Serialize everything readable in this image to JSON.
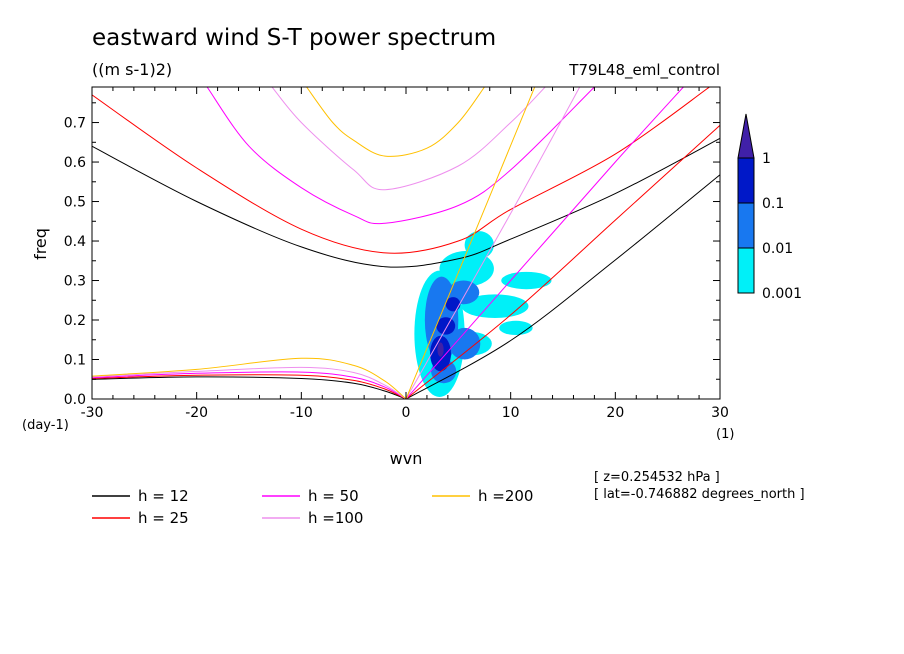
{
  "chart_data": {
    "type": "line",
    "title": "eastward wind S-T power spectrum",
    "subtitle": "((m s-1)2)",
    "experiment": "T79L48_eml_control",
    "xlabel": "wvn",
    "x_unit": "(1)",
    "ylabel": "freq",
    "y_unit": "(day-1)",
    "xlim": [
      -30,
      30
    ],
    "ylim": [
      0,
      0.79
    ],
    "x_ticks": [
      -30,
      -20,
      -10,
      0,
      10,
      20,
      30
    ],
    "x_tick_labels": [
      "-30",
      "-20",
      "-10",
      "0",
      "10",
      "20",
      "30"
    ],
    "y_ticks": [
      0,
      0.1,
      0.2,
      0.3,
      0.4,
      0.5,
      0.6,
      0.7
    ],
    "y_tick_labels": [
      "0.0",
      "0.1",
      "0.2",
      "0.3",
      "0.4",
      "0.5",
      "0.6",
      "0.7"
    ],
    "info_lines": [
      "[ z=0.254532 hPa ]",
      "[ lat=-0.746882 degrees_north ]"
    ],
    "series": [
      {
        "name": "h = 12",
        "color": "#000000",
        "kelvin": [
          [
            0,
            0
          ],
          [
            10,
            0.148
          ],
          [
            20,
            0.352
          ],
          [
            30,
            0.568
          ]
        ],
        "rossby": [
          [
            -30,
            0.05
          ],
          [
            -20,
            0.056
          ],
          [
            -10,
            0.052
          ],
          [
            -5,
            0.04
          ],
          [
            -2,
            0.02
          ],
          [
            0,
            0
          ]
        ],
        "inertia_gravity": [
          [
            -30,
            0.64
          ],
          [
            -20,
            0.5
          ],
          [
            -10,
            0.385
          ],
          [
            -2,
            0.335
          ],
          [
            5,
            0.355
          ],
          [
            10,
            0.405
          ],
          [
            20,
            0.52
          ],
          [
            30,
            0.66
          ]
        ]
      },
      {
        "name": "h = 25",
        "color": "#ff0000",
        "kelvin": [
          [
            0,
            0
          ],
          [
            10,
            0.213
          ],
          [
            20,
            0.453
          ],
          [
            30,
            0.693
          ]
        ],
        "rossby": [
          [
            -30,
            0.052
          ],
          [
            -20,
            0.06
          ],
          [
            -10,
            0.06
          ],
          [
            -5,
            0.047
          ],
          [
            -2,
            0.025
          ],
          [
            0,
            0
          ]
        ],
        "inertia_gravity": [
          [
            -30,
            0.77
          ],
          [
            -20,
            0.585
          ],
          [
            -10,
            0.43
          ],
          [
            -2,
            0.37
          ],
          [
            5,
            0.4
          ],
          [
            10,
            0.48
          ],
          [
            20,
            0.62
          ],
          [
            29,
            0.79
          ]
        ]
      },
      {
        "name": "h = 50",
        "color": "#ff00ff",
        "kelvin": [
          [
            0,
            0
          ],
          [
            10,
            0.3
          ],
          [
            20,
            0.6
          ],
          [
            26.5,
            0.79
          ]
        ],
        "rossby": [
          [
            -30,
            0.054
          ],
          [
            -20,
            0.065
          ],
          [
            -10,
            0.068
          ],
          [
            -5,
            0.055
          ],
          [
            -2,
            0.03
          ],
          [
            0,
            0
          ]
        ],
        "inertia_gravity": [
          [
            -19,
            0.79
          ],
          [
            -15,
            0.64
          ],
          [
            -10,
            0.535
          ],
          [
            -5,
            0.465
          ],
          [
            -2,
            0.445
          ],
          [
            5,
            0.49
          ],
          [
            10,
            0.58
          ],
          [
            18,
            0.79
          ]
        ]
      },
      {
        "name": "h =100",
        "color": "#ee90ee",
        "kelvin": [
          [
            0,
            0
          ],
          [
            10,
            0.47
          ],
          [
            16.6,
            0.79
          ]
        ],
        "rossby": [
          [
            -30,
            0.056
          ],
          [
            -20,
            0.07
          ],
          [
            -10,
            0.08
          ],
          [
            -5,
            0.067
          ],
          [
            -2,
            0.035
          ],
          [
            0,
            0
          ]
        ],
        "inertia_gravity": [
          [
            -12.8,
            0.79
          ],
          [
            -10,
            0.7
          ],
          [
            -5,
            0.58
          ],
          [
            -2,
            0.53
          ],
          [
            5,
            0.59
          ],
          [
            10,
            0.7
          ],
          [
            13.3,
            0.79
          ]
        ]
      },
      {
        "name": "h =200",
        "color": "#ffc000",
        "kelvin": [
          [
            0,
            0
          ],
          [
            5,
            0.32
          ],
          [
            12.3,
            0.79
          ]
        ],
        "rossby": [
          [
            -30,
            0.058
          ],
          [
            -20,
            0.075
          ],
          [
            -10,
            0.103
          ],
          [
            -5,
            0.085
          ],
          [
            -2,
            0.045
          ],
          [
            0,
            0
          ]
        ],
        "inertia_gravity": [
          [
            -9.5,
            0.79
          ],
          [
            -7,
            0.7
          ],
          [
            -5,
            0.655
          ],
          [
            -2,
            0.615
          ],
          [
            2,
            0.635
          ],
          [
            5,
            0.7
          ],
          [
            7.5,
            0.79
          ]
        ]
      }
    ],
    "colorbar": {
      "labels": [
        "1",
        "0.1",
        "0.01",
        "0.001"
      ],
      "colors": [
        "#4020a8",
        "#0018c8",
        "#1878f0",
        "#00f0f8"
      ]
    },
    "shading": {
      "description_levels": [
        "0.001",
        "0.01",
        "0.1",
        "1"
      ],
      "cells": [
        {
          "level": 0,
          "x": 3.2,
          "y": 0.165,
          "rx": 2.4,
          "ry": 0.16
        },
        {
          "level": 0,
          "x": 5.8,
          "y": 0.33,
          "rx": 2.6,
          "ry": 0.045
        },
        {
          "level": 0,
          "x": 8.5,
          "y": 0.235,
          "rx": 3.2,
          "ry": 0.03
        },
        {
          "level": 0,
          "x": 11.5,
          "y": 0.3,
          "rx": 2.4,
          "ry": 0.022
        },
        {
          "level": 0,
          "x": 7.0,
          "y": 0.39,
          "rx": 1.4,
          "ry": 0.035
        },
        {
          "level": 0,
          "x": 10.5,
          "y": 0.18,
          "rx": 1.6,
          "ry": 0.018
        },
        {
          "level": 0,
          "x": 6.2,
          "y": 0.14,
          "rx": 2.0,
          "ry": 0.03
        },
        {
          "level": 1,
          "x": 3.4,
          "y": 0.2,
          "rx": 1.6,
          "ry": 0.11
        },
        {
          "level": 1,
          "x": 5.5,
          "y": 0.27,
          "rx": 1.5,
          "ry": 0.03
        },
        {
          "level": 1,
          "x": 5.6,
          "y": 0.14,
          "rx": 1.5,
          "ry": 0.04
        },
        {
          "level": 1,
          "x": 3.6,
          "y": 0.07,
          "rx": 1.2,
          "ry": 0.03
        },
        {
          "level": 2,
          "x": 3.3,
          "y": 0.115,
          "rx": 1.0,
          "ry": 0.045
        },
        {
          "level": 2,
          "x": 3.8,
          "y": 0.185,
          "rx": 0.9,
          "ry": 0.022
        },
        {
          "level": 2,
          "x": 4.5,
          "y": 0.24,
          "rx": 0.7,
          "ry": 0.018
        },
        {
          "level": 3,
          "x": 3.3,
          "y": 0.125,
          "rx": 0.3,
          "ry": 0.018
        }
      ]
    }
  }
}
